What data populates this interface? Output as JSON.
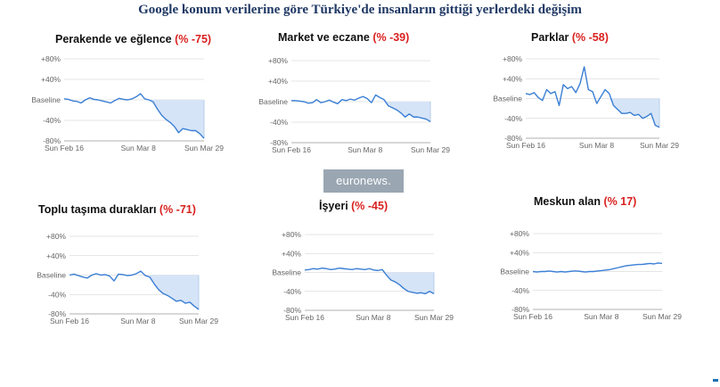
{
  "title": "Google konum verilerine göre Türkiye'de insanların gittiği yerlerdeki değişim",
  "logo_text": "euronews.",
  "colors": {
    "line": "#3a7fd5",
    "fill": "#d6e4f7",
    "axis": "#cccccc",
    "title": "#1f3864",
    "pct": "#d9211f"
  },
  "chart_data": [
    {
      "type": "line",
      "title": "Perakende ve eğlence",
      "pct_label": "(% -75)",
      "y_ticks": [
        "+80%",
        "+40%",
        "Baseline",
        "-40%",
        "-80%"
      ],
      "x_ticks": [
        "Sun Feb 16",
        "Sun Mar 8",
        "Sun Mar 29"
      ],
      "ylim": [
        -80,
        80
      ],
      "values": [
        2,
        1,
        -2,
        -3,
        -6,
        0,
        4,
        1,
        0,
        -2,
        -4,
        -6,
        -1,
        3,
        1,
        0,
        2,
        6,
        12,
        2,
        0,
        -4,
        -18,
        -30,
        -38,
        -44,
        -52,
        -64,
        -56,
        -58,
        -60,
        -60,
        -66,
        -75
      ]
    },
    {
      "type": "line",
      "title": "Market ve eczane",
      "pct_label": "(% -39)",
      "y_ticks": [
        "+80%",
        "+40%",
        "Baseline",
        "-40%",
        "-80%"
      ],
      "x_ticks": [
        "Sun Feb 16",
        "Sun Mar 8",
        "Sun Mar 29"
      ],
      "ylim": [
        -80,
        80
      ],
      "values": [
        2,
        2,
        1,
        0,
        -3,
        -2,
        4,
        -2,
        0,
        3,
        -1,
        -4,
        4,
        2,
        5,
        3,
        7,
        10,
        6,
        -2,
        13,
        8,
        4,
        -8,
        -12,
        -16,
        -22,
        -30,
        -24,
        -30,
        -30,
        -32,
        -34,
        -39
      ]
    },
    {
      "type": "line",
      "title": "Parklar",
      "pct_label": "(% -58)",
      "y_ticks": [
        "+80%",
        "+40%",
        "Baseline",
        "-40%",
        "-80%"
      ],
      "x_ticks": [
        "Sun Feb 16",
        "Sun Mar 8",
        "Sun Mar 29"
      ],
      "ylim": [
        -80,
        80
      ],
      "values": [
        10,
        8,
        12,
        2,
        -4,
        18,
        10,
        14,
        -14,
        28,
        20,
        24,
        12,
        30,
        64,
        18,
        14,
        -10,
        4,
        18,
        10,
        -14,
        -22,
        -30,
        -30,
        -28,
        -34,
        -32,
        -40,
        -36,
        -30,
        -54,
        -58
      ]
    },
    {
      "type": "line",
      "title": "Toplu taşıma durakları",
      "pct_label": "(% -71)",
      "y_ticks": [
        "+80%",
        "+40%",
        "Baseline",
        "-40%",
        "-80%"
      ],
      "x_ticks": [
        "Sun Feb 16",
        "Sun Mar 8",
        "Sun Mar 29"
      ],
      "ylim": [
        -80,
        80
      ],
      "values": [
        0,
        2,
        -1,
        -4,
        -6,
        0,
        3,
        0,
        1,
        -2,
        -12,
        2,
        1,
        -1,
        0,
        3,
        8,
        -1,
        -4,
        -18,
        -30,
        -38,
        -42,
        -48,
        -54,
        -52,
        -58,
        -56,
        -64,
        -71
      ]
    },
    {
      "type": "line",
      "title": "İşyeri",
      "pct_label": "(% -45)",
      "y_ticks": [
        "+80%",
        "+40%",
        "Baseline",
        "-40%",
        "-80%"
      ],
      "x_ticks": [
        "Sun Feb 16",
        "Sun Mar 8",
        "Sun Mar 29"
      ],
      "ylim": [
        -80,
        80
      ],
      "values": [
        5,
        6,
        8,
        7,
        9,
        8,
        6,
        7,
        9,
        8,
        7,
        6,
        8,
        7,
        6,
        8,
        5,
        4,
        6,
        -6,
        -16,
        -20,
        -26,
        -34,
        -40,
        -42,
        -44,
        -43,
        -45,
        -40,
        -45
      ]
    },
    {
      "type": "line",
      "title": "Meskun alan",
      "pct_label": "(% 17)",
      "y_ticks": [
        "+80%",
        "+40%",
        "Baseline",
        "-40%",
        "-80%"
      ],
      "x_ticks": [
        "Sun Feb 16",
        "Sun Mar 8",
        "Sun Mar 29"
      ],
      "ylim": [
        -80,
        80
      ],
      "values": [
        0,
        -1,
        0,
        0,
        1,
        0,
        -1,
        0,
        -1,
        0,
        1,
        1,
        0,
        -1,
        0,
        0,
        1,
        2,
        3,
        4,
        6,
        8,
        10,
        12,
        13,
        14,
        15,
        15,
        16,
        17,
        16,
        18,
        17
      ]
    }
  ]
}
